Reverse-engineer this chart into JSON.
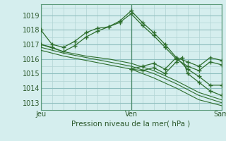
{
  "title": "",
  "xlabel": "Pression niveau de la mer( hPa )",
  "bg_color": "#d5eeee",
  "grid_color": "#b0d4d4",
  "line_color": "#2d6e2d",
  "ylim": [
    1012.5,
    1019.75
  ],
  "xlim": [
    0,
    48
  ],
  "xtick_positions": [
    0,
    24,
    48
  ],
  "xtick_labels": [
    "Jeu",
    "Ven",
    "Sam"
  ],
  "ytick_positions": [
    1013,
    1014,
    1015,
    1016,
    1017,
    1018,
    1019
  ],
  "series": [
    {
      "x": [
        0,
        3,
        6,
        9,
        12,
        15,
        18,
        21,
        24,
        27,
        30,
        33,
        36,
        39,
        42,
        45,
        48
      ],
      "y": [
        1018.0,
        1017.0,
        1016.8,
        1017.2,
        1017.8,
        1018.1,
        1018.2,
        1018.6,
        1019.3,
        1018.5,
        1017.8,
        1017.0,
        1016.1,
        1015.8,
        1015.5,
        1016.1,
        1015.9
      ],
      "marker": true
    },
    {
      "x": [
        0,
        3,
        6,
        9,
        12,
        15,
        18,
        21,
        24,
        27,
        30,
        33,
        36,
        39,
        42,
        45,
        48
      ],
      "y": [
        1017.0,
        1016.8,
        1016.5,
        1016.9,
        1017.5,
        1017.9,
        1018.2,
        1018.5,
        1019.1,
        1018.3,
        1017.6,
        1016.8,
        1016.0,
        1015.5,
        1015.2,
        1015.8,
        1015.6
      ],
      "marker": true
    },
    {
      "x": [
        0,
        6,
        12,
        18,
        24,
        30,
        36,
        42,
        48
      ],
      "y": [
        1017.0,
        1016.5,
        1016.2,
        1016.0,
        1015.7,
        1015.2,
        1014.5,
        1013.7,
        1013.2
      ],
      "marker": false
    },
    {
      "x": [
        0,
        6,
        12,
        18,
        24,
        30,
        36,
        42,
        48
      ],
      "y": [
        1016.8,
        1016.4,
        1016.1,
        1015.8,
        1015.5,
        1015.0,
        1014.3,
        1013.5,
        1013.0
      ],
      "marker": false
    },
    {
      "x": [
        0,
        6,
        12,
        18,
        24,
        30,
        36,
        42,
        48
      ],
      "y": [
        1016.6,
        1016.2,
        1015.9,
        1015.6,
        1015.3,
        1014.7,
        1014.0,
        1013.2,
        1012.8
      ],
      "marker": false
    },
    {
      "x": [
        24,
        27,
        30,
        33,
        36,
        39,
        42,
        45,
        48
      ],
      "y": [
        1015.3,
        1015.5,
        1015.7,
        1015.3,
        1016.1,
        1015.3,
        1014.8,
        1014.2,
        1014.2
      ],
      "marker": true
    },
    {
      "x": [
        24,
        27,
        30,
        33,
        36,
        37.5,
        39,
        42,
        45,
        48
      ],
      "y": [
        1015.3,
        1015.2,
        1015.4,
        1015.0,
        1015.8,
        1016.1,
        1015.0,
        1014.4,
        1013.8,
        1013.5
      ],
      "marker": true
    }
  ]
}
